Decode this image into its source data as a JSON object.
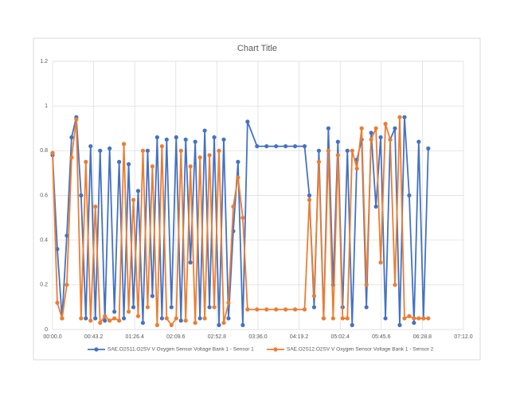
{
  "chart_data": {
    "type": "line",
    "title": "Chart Title",
    "x": [
      0,
      5,
      10,
      15,
      20,
      25,
      30,
      35,
      40,
      45,
      50,
      55,
      60,
      65,
      70,
      75,
      80,
      85,
      90,
      95,
      100,
      105,
      110,
      115,
      120,
      125,
      130,
      135,
      140,
      145,
      150,
      155,
      160,
      165,
      170,
      175,
      180,
      185,
      190,
      195,
      200,
      205,
      215,
      225,
      235,
      245,
      255,
      265,
      270,
      275,
      280,
      285,
      290,
      295,
      300,
      305,
      310,
      315,
      320,
      325,
      330,
      335,
      340,
      345,
      350,
      355,
      360,
      365,
      370,
      375,
      380,
      385,
      390,
      395
    ],
    "series": [
      {
        "name": "SAE.O2S11.O2SV V Oxygen Sensor Voltage Bank 1 - Sensor 1",
        "color": "#4472c4",
        "values": [
          0.78,
          0.36,
          0.05,
          0.42,
          0.86,
          0.95,
          0.6,
          0.05,
          0.82,
          0.05,
          0.8,
          0.04,
          0.81,
          0.08,
          0.75,
          0.05,
          0.74,
          0.1,
          0.62,
          0.03,
          0.8,
          0.15,
          0.86,
          0.05,
          0.85,
          0.1,
          0.86,
          0.04,
          0.85,
          0.3,
          0.84,
          0.05,
          0.89,
          0.1,
          0.86,
          0.02,
          0.85,
          0.05,
          0.44,
          0.75,
          0.02,
          0.93,
          0.82,
          0.82,
          0.82,
          0.82,
          0.82,
          0.82,
          0.6,
          0.1,
          0.8,
          0.05,
          0.9,
          0.2,
          0.84,
          0.1,
          0.8,
          0.02,
          0.76,
          0.85,
          0.1,
          0.88,
          0.55,
          0.86,
          0.05,
          0.85,
          0.9,
          0.02,
          0.95,
          0.6,
          0.03,
          0.84,
          0.05,
          0.81
        ]
      },
      {
        "name": "SAE.O2S12.O2SV V Oxygen Sensor Voltage Bank 1 - Sensor 2",
        "color": "#ed7d31",
        "values": [
          0.79,
          0.12,
          0.05,
          0.2,
          0.77,
          0.94,
          0.05,
          0.75,
          0.04,
          0.55,
          0.03,
          0.06,
          0.04,
          0.05,
          0.04,
          0.83,
          0.08,
          0.58,
          0.06,
          0.8,
          0.1,
          0.73,
          0.02,
          0.82,
          0.05,
          0.02,
          0.05,
          0.8,
          0.04,
          0.73,
          0.03,
          0.77,
          0.05,
          0.78,
          0.1,
          0.8,
          0.03,
          0.12,
          0.55,
          0.68,
          0.5,
          0.09,
          0.09,
          0.09,
          0.09,
          0.09,
          0.09,
          0.09,
          0.58,
          0.15,
          0.75,
          0.05,
          0.8,
          0.05,
          0.78,
          0.05,
          0.05,
          0.8,
          0.72,
          0.9,
          0.2,
          0.85,
          0.9,
          0.3,
          0.92,
          0.85,
          0.2,
          0.95,
          0.05,
          0.06,
          0.05,
          0.05,
          0.05,
          0.05
        ]
      }
    ],
    "xlim": [
      0,
      432
    ],
    "xticks": [
      {
        "value": 0,
        "label": "00:00.0"
      },
      {
        "value": 43.2,
        "label": "00:43.2"
      },
      {
        "value": 86.4,
        "label": "01:26.4"
      },
      {
        "value": 129.6,
        "label": "02:09.6"
      },
      {
        "value": 172.8,
        "label": "02:52.8"
      },
      {
        "value": 216,
        "label": "03:36.0"
      },
      {
        "value": 259.2,
        "label": "04:19.2"
      },
      {
        "value": 302.4,
        "label": "05:02.4"
      },
      {
        "value": 345.6,
        "label": "05:45.6"
      },
      {
        "value": 388.8,
        "label": "06:28.8"
      },
      {
        "value": 432,
        "label": "07:12.0"
      }
    ],
    "ylim": [
      0,
      1.2
    ],
    "yticks": [
      0,
      0.2,
      0.4,
      0.6,
      0.8,
      1,
      1.2
    ],
    "grid": true,
    "legend": "bottom"
  }
}
